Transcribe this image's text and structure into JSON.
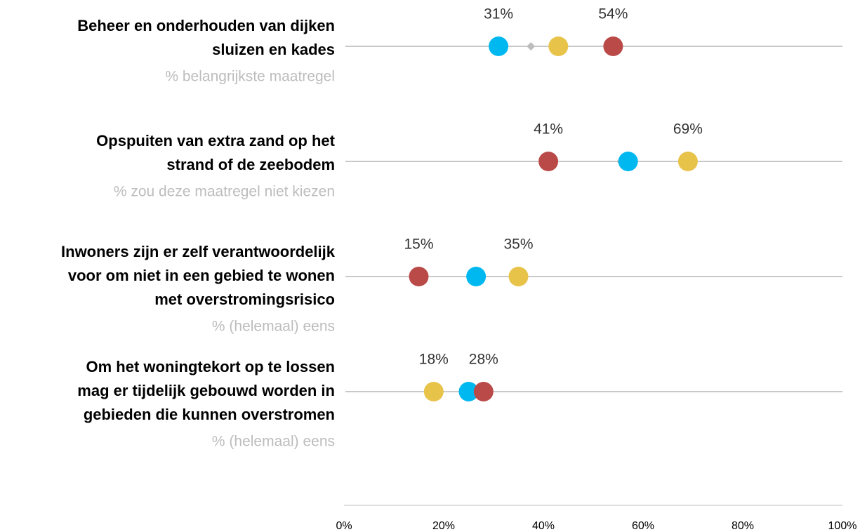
{
  "chart_data": {
    "type": "dot",
    "categories": [
      [
        "Beheer en onderhouden van dijken",
        "sluizen en kades"
      ],
      [
        "Opspuiten van extra zand op het",
        "strand of de zeebodem"
      ],
      [
        "Inwoners zijn er zelf verantwoordelijk",
        "voor om niet in een gebied te wonen",
        "met overstromingsrisico"
      ],
      [
        "Om het woningtekort op te lossen",
        "mag er tijdelijk gebouwd worden in",
        "gebieden die kunnen overstromen"
      ]
    ],
    "subtitles": [
      "% belangrijkste maatregel",
      "% zou deze maatregel niet kiezen",
      "% (helemaal) eens",
      "% (helemaal) eens"
    ],
    "series": [
      {
        "color": "#00b8f0",
        "marker": "circle",
        "values": [
          31,
          57,
          26.5,
          25
        ],
        "value_labels": [
          "31%",
          null,
          null,
          null
        ]
      },
      {
        "color": "#e8c34a",
        "marker": "circle",
        "values": [
          43,
          69,
          35,
          18
        ],
        "value_labels": [
          null,
          "69%",
          "35%",
          "18%"
        ]
      },
      {
        "color": "#b94a48",
        "marker": "circle",
        "values": [
          54,
          41,
          15,
          28
        ],
        "value_labels": [
          "54%",
          "41%",
          "15%",
          "28%"
        ]
      },
      {
        "color": "#bdbdbd",
        "marker": "diamond",
        "values": [
          37.5,
          55.5,
          null,
          null
        ]
      }
    ],
    "xlim": [
      0,
      100
    ],
    "xticks": [
      {
        "value": 0,
        "label": "0%"
      },
      {
        "value": 20,
        "label": "20%"
      },
      {
        "value": 40,
        "label": "40%"
      },
      {
        "value": 60,
        "label": "60%"
      },
      {
        "value": 80,
        "label": "80%"
      },
      {
        "value": 100,
        "label": "100%"
      }
    ]
  }
}
